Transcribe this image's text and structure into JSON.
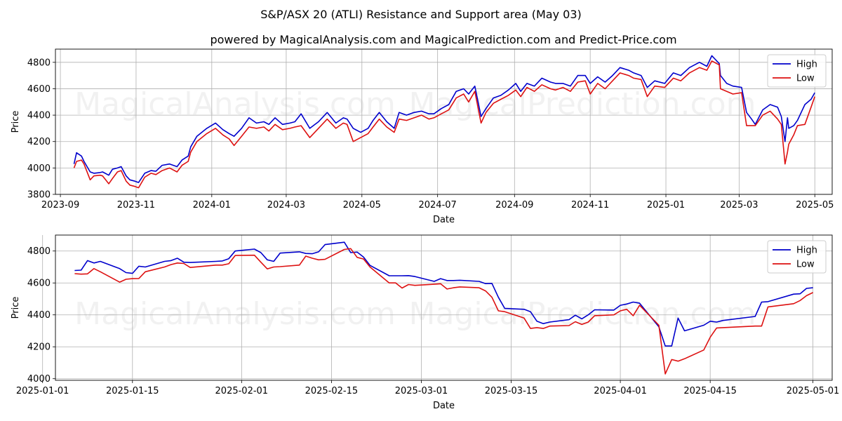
{
  "title": "S&P/ASX 20 (ATLI) Resistance and Support area (May 03)",
  "subtitle": "powered by MagicalAnalysis.com and MagicalPrediction.com and Predict-Price.com",
  "watermarks": [
    "MagicalAnalysis.com",
    "MagicalPrediction.com"
  ],
  "colors": {
    "high": "#0000cc",
    "low": "#dd1111",
    "grid": "#b0b0b0"
  },
  "chart_data": [
    {
      "type": "line",
      "xlabel": "Date",
      "ylabel": "Price",
      "xlim": [
        "2023-08-28",
        "2025-05-15"
      ],
      "ylim": [
        3800,
        4900
      ],
      "xticks": [
        "2023-09",
        "2023-11",
        "2024-01",
        "2024-03",
        "2024-05",
        "2024-07",
        "2024-09",
        "2024-11",
        "2025-01",
        "2025-03",
        "2025-05"
      ],
      "xtick_dates": [
        "2023-09-01",
        "2023-11-01",
        "2024-01-01",
        "2024-03-01",
        "2024-05-01",
        "2024-07-01",
        "2024-09-01",
        "2024-11-01",
        "2025-01-01",
        "2025-03-01",
        "2025-05-01"
      ],
      "yticks": [
        3800,
        4000,
        4200,
        4400,
        4600,
        4800
      ],
      "grid": true,
      "legend": "top-right",
      "series": [
        {
          "name": "High",
          "x": [
            "2023-09-12",
            "2023-09-14",
            "2023-09-18",
            "2023-09-20",
            "2023-09-25",
            "2023-09-28",
            "2023-10-03",
            "2023-10-05",
            "2023-10-10",
            "2023-10-13",
            "2023-10-17",
            "2023-10-20",
            "2023-10-24",
            "2023-10-27",
            "2023-10-31",
            "2023-11-03",
            "2023-11-08",
            "2023-11-13",
            "2023-11-17",
            "2023-11-22",
            "2023-11-28",
            "2023-12-04",
            "2023-12-08",
            "2023-12-13",
            "2023-12-15",
            "2023-12-20",
            "2023-12-28",
            "2024-01-04",
            "2024-01-10",
            "2024-01-15",
            "2024-01-19",
            "2024-01-25",
            "2024-01-31",
            "2024-02-06",
            "2024-02-12",
            "2024-02-16",
            "2024-02-21",
            "2024-02-27",
            "2024-03-04",
            "2024-03-08",
            "2024-03-13",
            "2024-03-20",
            "2024-03-27",
            "2024-04-03",
            "2024-04-10",
            "2024-04-16",
            "2024-04-19",
            "2024-04-24",
            "2024-04-30",
            "2024-05-06",
            "2024-05-10",
            "2024-05-15",
            "2024-05-21",
            "2024-05-27",
            "2024-05-31",
            "2024-06-06",
            "2024-06-12",
            "2024-06-18",
            "2024-06-24",
            "2024-06-28",
            "2024-07-04",
            "2024-07-10",
            "2024-07-16",
            "2024-07-22",
            "2024-07-26",
            "2024-07-31",
            "2024-08-05",
            "2024-08-09",
            "2024-08-15",
            "2024-08-21",
            "2024-08-27",
            "2024-09-02",
            "2024-09-06",
            "2024-09-11",
            "2024-09-17",
            "2024-09-23",
            "2024-09-30",
            "2024-10-04",
            "2024-10-10",
            "2024-10-16",
            "2024-10-22",
            "2024-10-28",
            "2024-11-01",
            "2024-11-07",
            "2024-11-13",
            "2024-11-19",
            "2024-11-25",
            "2024-12-02",
            "2024-12-06",
            "2024-12-12",
            "2024-12-17",
            "2024-12-23",
            "2024-12-31",
            "2025-01-07",
            "2025-01-13",
            "2025-01-20",
            "2025-01-28",
            "2025-02-03",
            "2025-02-07",
            "2025-02-13",
            "2025-02-14",
            "2025-02-19",
            "2025-02-24",
            "2025-03-03",
            "2025-03-07",
            "2025-03-11",
            "2025-03-14",
            "2025-03-20",
            "2025-03-26",
            "2025-04-01",
            "2025-04-04",
            "2025-04-07",
            "2025-04-09",
            "2025-04-10",
            "2025-04-14",
            "2025-04-17",
            "2025-04-23",
            "2025-04-28",
            "2025-05-01"
          ],
          "values": [
            4030,
            4115,
            4090,
            4050,
            3970,
            3960,
            3965,
            3970,
            3945,
            3990,
            4000,
            4010,
            3940,
            3910,
            3900,
            3890,
            3960,
            3980,
            3975,
            4020,
            4030,
            4010,
            4060,
            4090,
            4160,
            4240,
            4300,
            4340,
            4290,
            4260,
            4240,
            4300,
            4380,
            4340,
            4350,
            4330,
            4380,
            4330,
            4340,
            4350,
            4410,
            4300,
            4350,
            4420,
            4340,
            4380,
            4370,
            4300,
            4270,
            4300,
            4360,
            4420,
            4350,
            4300,
            4420,
            4400,
            4420,
            4430,
            4410,
            4410,
            4450,
            4480,
            4580,
            4600,
            4560,
            4620,
            4390,
            4450,
            4530,
            4550,
            4590,
            4640,
            4580,
            4640,
            4620,
            4680,
            4650,
            4640,
            4640,
            4620,
            4700,
            4700,
            4640,
            4690,
            4650,
            4700,
            4760,
            4740,
            4720,
            4700,
            4610,
            4660,
            4640,
            4720,
            4700,
            4760,
            4800,
            4770,
            4850,
            4790,
            4700,
            4640,
            4620,
            4610,
            4420,
            4370,
            4330,
            4440,
            4480,
            4460,
            4390,
            4200,
            4380,
            4300,
            4320,
            4360,
            4480,
            4520,
            4570
          ]
        },
        {
          "name": "Low",
          "x": [
            "2023-09-12",
            "2023-09-14",
            "2023-09-18",
            "2023-09-20",
            "2023-09-25",
            "2023-09-28",
            "2023-10-03",
            "2023-10-05",
            "2023-10-10",
            "2023-10-13",
            "2023-10-17",
            "2023-10-20",
            "2023-10-24",
            "2023-10-27",
            "2023-10-31",
            "2023-11-03",
            "2023-11-08",
            "2023-11-13",
            "2023-11-17",
            "2023-11-22",
            "2023-11-28",
            "2023-12-04",
            "2023-12-08",
            "2023-12-13",
            "2023-12-15",
            "2023-12-20",
            "2023-12-28",
            "2024-01-04",
            "2024-01-10",
            "2024-01-15",
            "2024-01-19",
            "2024-01-25",
            "2024-01-31",
            "2024-02-06",
            "2024-02-12",
            "2024-02-16",
            "2024-02-21",
            "2024-02-27",
            "2024-03-04",
            "2024-03-08",
            "2024-03-13",
            "2024-03-20",
            "2024-03-27",
            "2024-04-03",
            "2024-04-10",
            "2024-04-16",
            "2024-04-19",
            "2024-04-24",
            "2024-04-30",
            "2024-05-06",
            "2024-05-10",
            "2024-05-15",
            "2024-05-21",
            "2024-05-27",
            "2024-05-31",
            "2024-06-06",
            "2024-06-12",
            "2024-06-18",
            "2024-06-24",
            "2024-06-28",
            "2024-07-04",
            "2024-07-10",
            "2024-07-16",
            "2024-07-22",
            "2024-07-26",
            "2024-07-31",
            "2024-08-05",
            "2024-08-09",
            "2024-08-15",
            "2024-08-21",
            "2024-08-27",
            "2024-09-02",
            "2024-09-06",
            "2024-09-11",
            "2024-09-17",
            "2024-09-23",
            "2024-09-30",
            "2024-10-04",
            "2024-10-10",
            "2024-10-16",
            "2024-10-22",
            "2024-10-28",
            "2024-11-01",
            "2024-11-07",
            "2024-11-13",
            "2024-11-19",
            "2024-11-25",
            "2024-12-02",
            "2024-12-06",
            "2024-12-12",
            "2024-12-17",
            "2024-12-23",
            "2024-12-31",
            "2025-01-07",
            "2025-01-13",
            "2025-01-20",
            "2025-01-28",
            "2025-02-03",
            "2025-02-07",
            "2025-02-13",
            "2025-02-14",
            "2025-02-19",
            "2025-02-24",
            "2025-03-03",
            "2025-03-07",
            "2025-03-11",
            "2025-03-14",
            "2025-03-20",
            "2025-03-26",
            "2025-04-01",
            "2025-04-04",
            "2025-04-07",
            "2025-04-09",
            "2025-04-10",
            "2025-04-14",
            "2025-04-17",
            "2025-04-23",
            "2025-04-28",
            "2025-05-01"
          ],
          "values": [
            4000,
            4050,
            4060,
            4030,
            3910,
            3940,
            3945,
            3940,
            3880,
            3920,
            3970,
            3980,
            3900,
            3870,
            3860,
            3850,
            3930,
            3960,
            3950,
            3980,
            4000,
            3970,
            4020,
            4050,
            4120,
            4200,
            4260,
            4300,
            4250,
            4220,
            4170,
            4240,
            4310,
            4300,
            4310,
            4280,
            4330,
            4290,
            4300,
            4310,
            4320,
            4230,
            4300,
            4370,
            4300,
            4340,
            4330,
            4200,
            4230,
            4260,
            4310,
            4370,
            4310,
            4270,
            4370,
            4360,
            4380,
            4400,
            4370,
            4380,
            4410,
            4440,
            4530,
            4560,
            4500,
            4580,
            4340,
            4420,
            4490,
            4520,
            4550,
            4590,
            4540,
            4610,
            4580,
            4630,
            4600,
            4590,
            4610,
            4580,
            4650,
            4660,
            4560,
            4640,
            4600,
            4660,
            4720,
            4700,
            4680,
            4670,
            4540,
            4620,
            4610,
            4680,
            4660,
            4720,
            4760,
            4740,
            4810,
            4780,
            4600,
            4580,
            4560,
            4570,
            4320,
            4320,
            4320,
            4400,
            4430,
            4370,
            4330,
            4030,
            4120,
            4180,
            4250,
            4320,
            4330,
            4460,
            4540
          ]
        }
      ]
    },
    {
      "type": "line",
      "xlabel": "Date",
      "ylabel": "Price",
      "xlim": [
        "2025-01-03",
        "2025-05-04"
      ],
      "ylim": [
        3990,
        4900
      ],
      "xticks": [
        "2025-01-01",
        "2025-01-15",
        "2025-02-01",
        "2025-02-15",
        "2025-03-01",
        "2025-03-15",
        "2025-04-01",
        "2025-04-15",
        "2025-05-01"
      ],
      "yticks": [
        4000,
        4200,
        4400,
        4600,
        4800
      ],
      "grid": true,
      "legend": "top-right",
      "series": [
        {
          "name": "High",
          "x": [
            "2025-01-06",
            "2025-01-07",
            "2025-01-08",
            "2025-01-09",
            "2025-01-10",
            "2025-01-13",
            "2025-01-14",
            "2025-01-15",
            "2025-01-16",
            "2025-01-17",
            "2025-01-20",
            "2025-01-21",
            "2025-01-22",
            "2025-01-23",
            "2025-01-24",
            "2025-01-28",
            "2025-01-29",
            "2025-01-30",
            "2025-01-31",
            "2025-02-03",
            "2025-02-04",
            "2025-02-05",
            "2025-02-06",
            "2025-02-07",
            "2025-02-10",
            "2025-02-11",
            "2025-02-12",
            "2025-02-13",
            "2025-02-14",
            "2025-02-17",
            "2025-02-18",
            "2025-02-19",
            "2025-02-20",
            "2025-02-21",
            "2025-02-24",
            "2025-02-25",
            "2025-02-26",
            "2025-02-27",
            "2025-02-28",
            "2025-03-03",
            "2025-03-04",
            "2025-03-05",
            "2025-03-06",
            "2025-03-07",
            "2025-03-10",
            "2025-03-11",
            "2025-03-12",
            "2025-03-13",
            "2025-03-14",
            "2025-03-17",
            "2025-03-18",
            "2025-03-19",
            "2025-03-20",
            "2025-03-21",
            "2025-03-24",
            "2025-03-25",
            "2025-03-26",
            "2025-03-27",
            "2025-03-28",
            "2025-03-31",
            "2025-04-01",
            "2025-04-02",
            "2025-04-03",
            "2025-04-04",
            "2025-04-07",
            "2025-04-08",
            "2025-04-09",
            "2025-04-10",
            "2025-04-11",
            "2025-04-14",
            "2025-04-15",
            "2025-04-16",
            "2025-04-17",
            "2025-04-22",
            "2025-04-23",
            "2025-04-24",
            "2025-04-28",
            "2025-04-29",
            "2025-04-30",
            "2025-05-01"
          ],
          "values": [
            4678,
            4680,
            4740,
            4725,
            4735,
            4690,
            4665,
            4660,
            4705,
            4700,
            4735,
            4740,
            4755,
            4730,
            4728,
            4735,
            4738,
            4752,
            4800,
            4812,
            4790,
            4745,
            4735,
            4787,
            4795,
            4785,
            4783,
            4795,
            4840,
            4855,
            4790,
            4793,
            4762,
            4710,
            4645,
            4645,
            4645,
            4646,
            4640,
            4610,
            4627,
            4615,
            4615,
            4617,
            4610,
            4596,
            4597,
            4510,
            4440,
            4435,
            4420,
            4360,
            4345,
            4355,
            4370,
            4398,
            4375,
            4400,
            4432,
            4430,
            4460,
            4468,
            4480,
            4473,
            4325,
            4205,
            4205,
            4380,
            4300,
            4335,
            4360,
            4355,
            4365,
            4390,
            4480,
            4483,
            4530,
            4532,
            4566,
            4570
          ]
        },
        {
          "name": "Low",
          "x": [
            "2025-01-06",
            "2025-01-07",
            "2025-01-08",
            "2025-01-09",
            "2025-01-10",
            "2025-01-13",
            "2025-01-14",
            "2025-01-15",
            "2025-01-16",
            "2025-01-17",
            "2025-01-20",
            "2025-01-21",
            "2025-01-22",
            "2025-01-23",
            "2025-01-24",
            "2025-01-28",
            "2025-01-29",
            "2025-01-30",
            "2025-01-31",
            "2025-02-03",
            "2025-02-04",
            "2025-02-05",
            "2025-02-06",
            "2025-02-07",
            "2025-02-10",
            "2025-02-11",
            "2025-02-12",
            "2025-02-13",
            "2025-02-14",
            "2025-02-17",
            "2025-02-18",
            "2025-02-19",
            "2025-02-20",
            "2025-02-21",
            "2025-02-24",
            "2025-02-25",
            "2025-02-26",
            "2025-02-27",
            "2025-02-28",
            "2025-03-03",
            "2025-03-04",
            "2025-03-05",
            "2025-03-06",
            "2025-03-07",
            "2025-03-10",
            "2025-03-11",
            "2025-03-12",
            "2025-03-13",
            "2025-03-14",
            "2025-03-17",
            "2025-03-18",
            "2025-03-19",
            "2025-03-20",
            "2025-03-21",
            "2025-03-24",
            "2025-03-25",
            "2025-03-26",
            "2025-03-27",
            "2025-03-28",
            "2025-03-31",
            "2025-04-01",
            "2025-04-02",
            "2025-04-03",
            "2025-04-04",
            "2025-04-07",
            "2025-04-08",
            "2025-04-09",
            "2025-04-10",
            "2025-04-11",
            "2025-04-14",
            "2025-04-15",
            "2025-04-16",
            "2025-04-17",
            "2025-04-22",
            "2025-04-23",
            "2025-04-24",
            "2025-04-28",
            "2025-04-29",
            "2025-04-30",
            "2025-05-01"
          ],
          "values": [
            4658,
            4655,
            4657,
            4690,
            4670,
            4605,
            4623,
            4627,
            4628,
            4670,
            4700,
            4715,
            4725,
            4722,
            4697,
            4712,
            4712,
            4720,
            4772,
            4774,
            4730,
            4688,
            4700,
            4702,
            4712,
            4768,
            4755,
            4745,
            4748,
            4810,
            4815,
            4760,
            4750,
            4700,
            4600,
            4600,
            4568,
            4590,
            4585,
            4592,
            4595,
            4562,
            4570,
            4575,
            4570,
            4550,
            4510,
            4425,
            4420,
            4380,
            4315,
            4320,
            4315,
            4330,
            4333,
            4357,
            4340,
            4355,
            4395,
            4400,
            4425,
            4435,
            4395,
            4460,
            4335,
            4030,
            4120,
            4110,
            4125,
            4180,
            4260,
            4318,
            4320,
            4330,
            4330,
            4450,
            4470,
            4490,
            4520,
            4540
          ]
        }
      ]
    }
  ]
}
